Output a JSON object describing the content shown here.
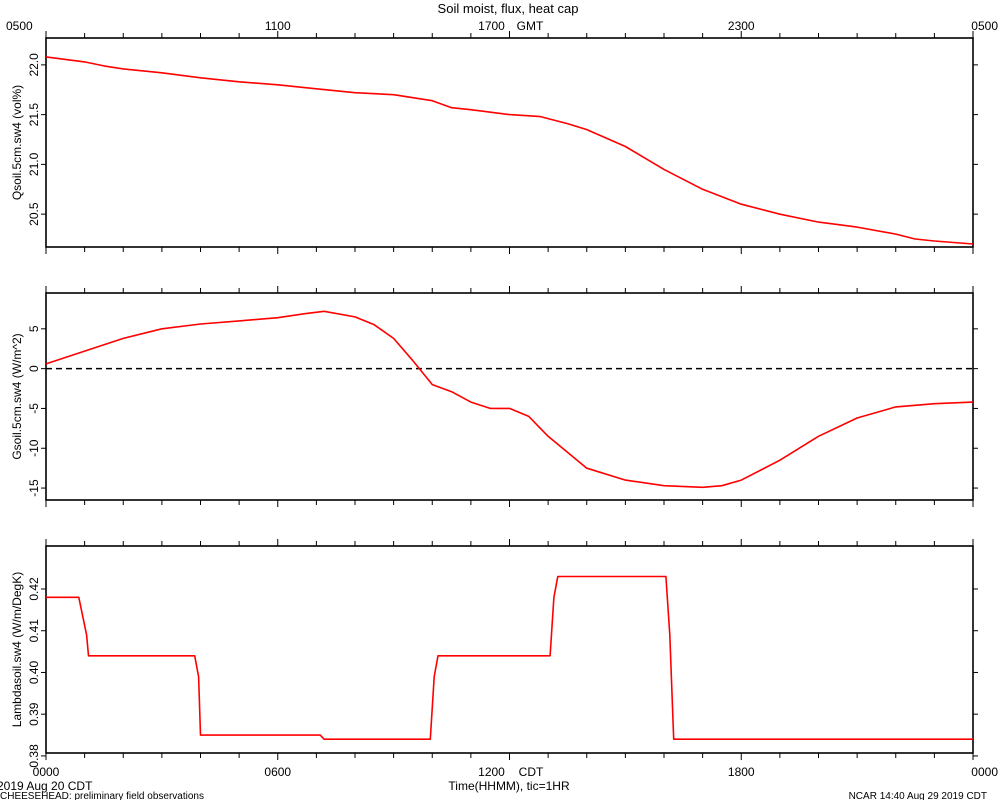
{
  "figure": {
    "title": "Soil moist, flux, heat cap",
    "top_axis_label": "GMT",
    "bottom_axis_label": "Time(HHMM), tic=1HR",
    "bottom_axis_unit": "CDT",
    "date_label": "2019 Aug 20 CDT",
    "footer_left": "CHEESEHEAD: preliminary field observations",
    "footer_right": "NCAR 14:40 Aug 29 2019 CDT",
    "line_color": "#ff0000",
    "zero_line_color": "#000000"
  },
  "chart_data": [
    {
      "type": "line",
      "ylabel": "Qsoil.5cm.sw4 (vol%)",
      "xlim": [
        0,
        24
      ],
      "ylim": [
        20.17,
        22.27
      ],
      "yticks": [
        20.5,
        21.0,
        21.5,
        22.0
      ],
      "ytick_labels": [
        "20.5",
        "21.0",
        "21.5",
        "22.0"
      ],
      "x_ticks_top": [
        0,
        6,
        12,
        18,
        24
      ],
      "x_tick_labels_top": [
        "0500",
        "1100",
        "1700",
        "2300",
        "0500"
      ],
      "x_ticks_bottom": [
        0,
        6,
        12,
        18,
        24
      ],
      "x_tick_labels_bottom": [
        "0000",
        "0600",
        "1200",
        "1800",
        "0000"
      ],
      "series": [
        {
          "x": [
            0,
            1,
            1.5,
            2,
            3,
            4,
            5,
            6,
            7,
            8,
            9,
            10,
            10.5,
            11,
            12,
            12.8,
            13.5,
            14,
            15,
            16,
            17,
            18,
            19,
            20,
            21,
            22,
            22.5,
            23,
            24
          ],
          "values": [
            22.08,
            22.03,
            21.99,
            21.96,
            21.92,
            21.87,
            21.83,
            21.8,
            21.76,
            21.72,
            21.7,
            21.64,
            21.57,
            21.55,
            21.5,
            21.48,
            21.41,
            21.35,
            21.18,
            20.95,
            20.75,
            20.6,
            20.5,
            20.42,
            20.37,
            20.3,
            20.25,
            20.23,
            20.2
          ]
        }
      ]
    },
    {
      "type": "line",
      "ylabel": "Gsoil.5cm.sw4 (W/m^2)",
      "xlim": [
        0,
        24
      ],
      "ylim": [
        -16.5,
        9.5
      ],
      "yticks": [
        -15,
        -10,
        -5,
        0,
        5
      ],
      "ytick_labels": [
        "-15",
        "-10",
        "-5",
        "0",
        "5"
      ],
      "zero_line": 0,
      "series": [
        {
          "x": [
            0,
            1,
            2,
            3,
            4,
            5,
            6,
            6.7,
            7.2,
            8,
            8.5,
            9,
            9.5,
            10,
            10.5,
            11,
            11.5,
            12,
            12.5,
            13,
            14,
            15,
            16,
            17,
            17.5,
            18,
            19,
            20,
            21,
            22,
            23,
            24
          ],
          "values": [
            0.6,
            2.2,
            3.8,
            5.0,
            5.6,
            6.0,
            6.4,
            6.9,
            7.2,
            6.5,
            5.5,
            3.8,
            1.0,
            -2.0,
            -2.9,
            -4.2,
            -5.0,
            -5.0,
            -6.0,
            -8.5,
            -12.5,
            -14.0,
            -14.7,
            -14.9,
            -14.7,
            -14.0,
            -11.5,
            -8.5,
            -6.2,
            -4.8,
            -4.4,
            -4.2
          ]
        }
      ]
    },
    {
      "type": "line",
      "ylabel": "Lambdasoil.sw4 (W/m/DegK)",
      "xlim": [
        0,
        24
      ],
      "ylim": [
        0.3807,
        0.4303
      ],
      "yticks": [
        0.38,
        0.39,
        0.4,
        0.41,
        0.42
      ],
      "ytick_labels": [
        "0.38",
        "0.39",
        "0.40",
        "0.41",
        "0.42"
      ],
      "series": [
        {
          "x": [
            0,
            0.85,
            1.05,
            1.1,
            3.85,
            3.95,
            4.0,
            7.1,
            7.2,
            9.95,
            10.05,
            10.15,
            13.05,
            13.15,
            13.25,
            16.05,
            16.15,
            16.25,
            24
          ],
          "values": [
            0.418,
            0.418,
            0.409,
            0.404,
            0.404,
            0.399,
            0.385,
            0.385,
            0.384,
            0.384,
            0.399,
            0.404,
            0.404,
            0.418,
            0.423,
            0.423,
            0.409,
            0.384,
            0.384
          ]
        }
      ]
    }
  ]
}
